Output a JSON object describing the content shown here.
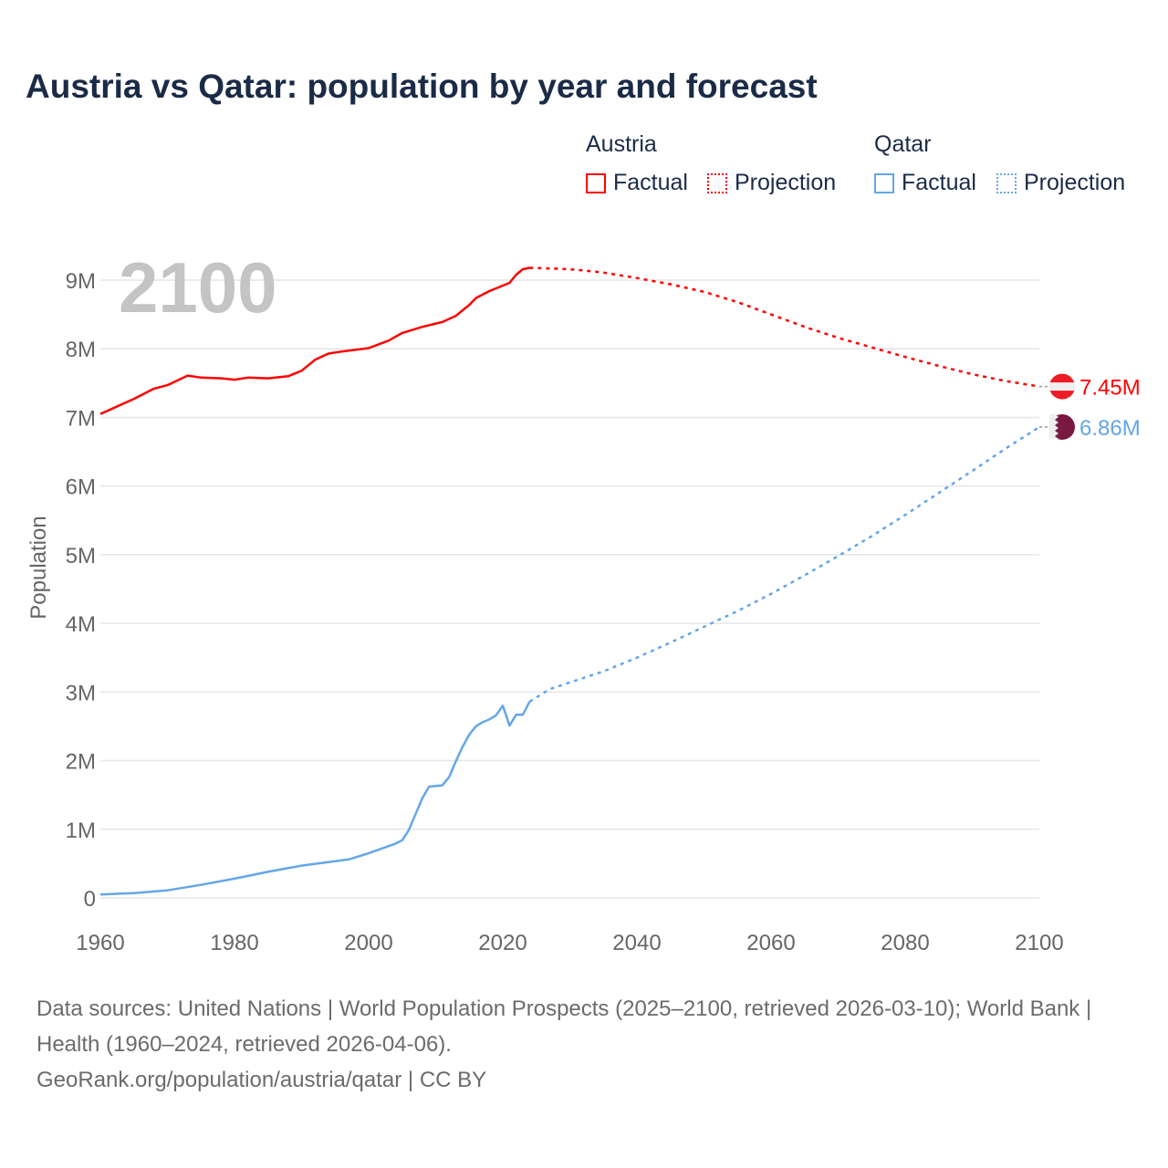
{
  "title": "Austria vs Qatar: population by year and forecast",
  "legend": {
    "groups": [
      {
        "name": "Austria",
        "factual": "Factual",
        "projection": "Projection",
        "color": "#ff0000"
      },
      {
        "name": "Qatar",
        "factual": "Factual",
        "projection": "Projection",
        "color": "#64a6e8"
      }
    ]
  },
  "year_overlay": "2100",
  "footer": {
    "sources": "Data sources: United Nations | World Population Prospects (2025–2100, retrieved 2026-03-10); World Bank | Health (1960–2024, retrieved 2026-04-06).",
    "credit": "GeoRank.org/population/austria/qatar | CC BY"
  },
  "chart_data": {
    "type": "line",
    "title": "Austria vs Qatar: population by year and forecast",
    "xlabel": "",
    "ylabel": "Population",
    "xlim": [
      1960,
      2100
    ],
    "ylim": [
      0,
      9
    ],
    "x_ticks": [
      "1960",
      "1980",
      "2000",
      "2020",
      "2040",
      "2060",
      "2080",
      "2100"
    ],
    "y_ticks": [
      "0",
      "1M",
      "2M",
      "3M",
      "4M",
      "5M",
      "6M",
      "7M",
      "8M",
      "9M"
    ],
    "grid": true,
    "units": "millions",
    "series": [
      {
        "name": "Austria",
        "color": "#ff0000",
        "end_label": "7.45M",
        "factual": [
          [
            1960,
            7.05
          ],
          [
            1965,
            7.27
          ],
          [
            1968,
            7.42
          ],
          [
            1970,
            7.47
          ],
          [
            1973,
            7.61
          ],
          [
            1975,
            7.58
          ],
          [
            1978,
            7.57
          ],
          [
            1980,
            7.55
          ],
          [
            1982,
            7.58
          ],
          [
            1985,
            7.57
          ],
          [
            1988,
            7.6
          ],
          [
            1990,
            7.68
          ],
          [
            1992,
            7.84
          ],
          [
            1994,
            7.93
          ],
          [
            1996,
            7.96
          ],
          [
            2000,
            8.01
          ],
          [
            2003,
            8.12
          ],
          [
            2005,
            8.23
          ],
          [
            2008,
            8.32
          ],
          [
            2011,
            8.39
          ],
          [
            2013,
            8.48
          ],
          [
            2015,
            8.64
          ],
          [
            2016,
            8.74
          ],
          [
            2018,
            8.84
          ],
          [
            2020,
            8.92
          ],
          [
            2021,
            8.96
          ],
          [
            2022,
            9.08
          ],
          [
            2023,
            9.16
          ],
          [
            2024,
            9.18
          ]
        ],
        "projection": [
          [
            2024,
            9.18
          ],
          [
            2030,
            9.16
          ],
          [
            2035,
            9.11
          ],
          [
            2040,
            9.03
          ],
          [
            2045,
            8.94
          ],
          [
            2050,
            8.83
          ],
          [
            2055,
            8.68
          ],
          [
            2060,
            8.5
          ],
          [
            2065,
            8.32
          ],
          [
            2070,
            8.16
          ],
          [
            2075,
            8.02
          ],
          [
            2080,
            7.88
          ],
          [
            2085,
            7.75
          ],
          [
            2090,
            7.63
          ],
          [
            2095,
            7.53
          ],
          [
            2100,
            7.45
          ]
        ]
      },
      {
        "name": "Qatar",
        "color": "#64a6e8",
        "end_label": "6.86M",
        "factual": [
          [
            1960,
            0.05
          ],
          [
            1965,
            0.07
          ],
          [
            1970,
            0.11
          ],
          [
            1975,
            0.19
          ],
          [
            1980,
            0.28
          ],
          [
            1985,
            0.38
          ],
          [
            1990,
            0.47
          ],
          [
            1997,
            0.56
          ],
          [
            2000,
            0.65
          ],
          [
            2004,
            0.79
          ],
          [
            2005,
            0.84
          ],
          [
            2006,
            0.99
          ],
          [
            2007,
            1.22
          ],
          [
            2008,
            1.45
          ],
          [
            2009,
            1.62
          ],
          [
            2011,
            1.64
          ],
          [
            2012,
            1.76
          ],
          [
            2013,
            1.99
          ],
          [
            2014,
            2.2
          ],
          [
            2015,
            2.38
          ],
          [
            2016,
            2.5
          ],
          [
            2017,
            2.56
          ],
          [
            2018,
            2.6
          ],
          [
            2019,
            2.66
          ],
          [
            2020,
            2.8
          ],
          [
            2021,
            2.51
          ],
          [
            2022,
            2.67
          ],
          [
            2023,
            2.67
          ],
          [
            2024,
            2.86
          ]
        ],
        "projection": [
          [
            2024,
            2.86
          ],
          [
            2027,
            3.04
          ],
          [
            2030,
            3.14
          ],
          [
            2035,
            3.3
          ],
          [
            2040,
            3.5
          ],
          [
            2045,
            3.72
          ],
          [
            2050,
            3.95
          ],
          [
            2055,
            4.18
          ],
          [
            2060,
            4.43
          ],
          [
            2065,
            4.7
          ],
          [
            2070,
            4.98
          ],
          [
            2075,
            5.27
          ],
          [
            2080,
            5.58
          ],
          [
            2085,
            5.9
          ],
          [
            2090,
            6.22
          ],
          [
            2095,
            6.55
          ],
          [
            2100,
            6.86
          ]
        ]
      }
    ]
  }
}
